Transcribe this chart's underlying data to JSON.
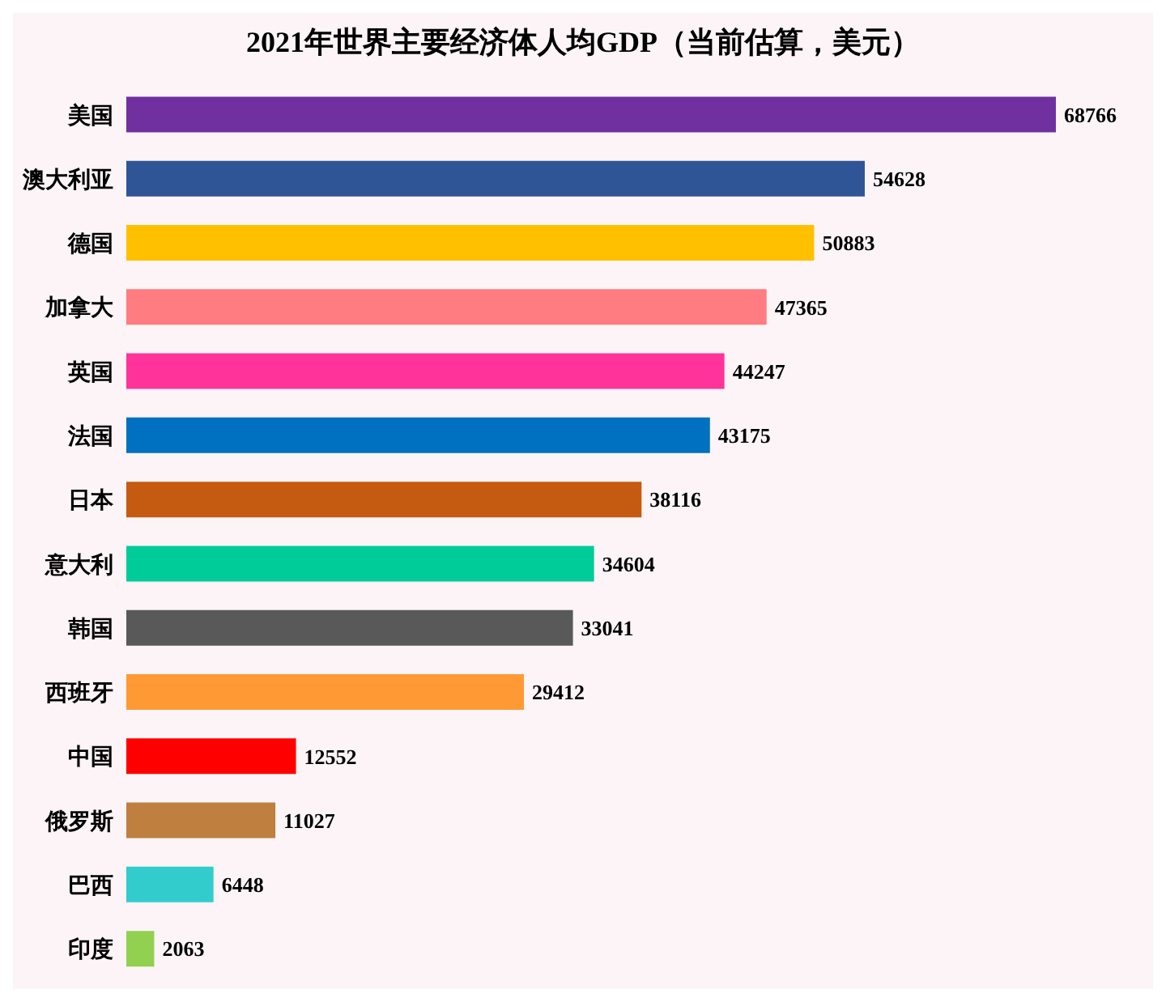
{
  "chart_data": {
    "type": "bar",
    "orientation": "horizontal",
    "title": "2021年世界主要经济体人均GDP（当前估算，美元）",
    "categories": [
      "美国",
      "澳大利亚",
      "德国",
      "加拿大",
      "英国",
      "法国",
      "日本",
      "意大利",
      "韩国",
      "西班牙",
      "中国",
      "俄罗斯",
      "巴西",
      "印度"
    ],
    "values": [
      68766,
      54628,
      50883,
      47365,
      44247,
      43175,
      38116,
      34604,
      33041,
      29412,
      12552,
      11027,
      6448,
      2063
    ],
    "colors": [
      "#7030a0",
      "#2f5597",
      "#ffc000",
      "#ff7c80",
      "#ff3399",
      "#0070c0",
      "#c55a11",
      "#00cc99",
      "#595959",
      "#ff9933",
      "#ff0000",
      "#bf7f3f",
      "#33cccc",
      "#92d050"
    ],
    "data_labels": true
  }
}
